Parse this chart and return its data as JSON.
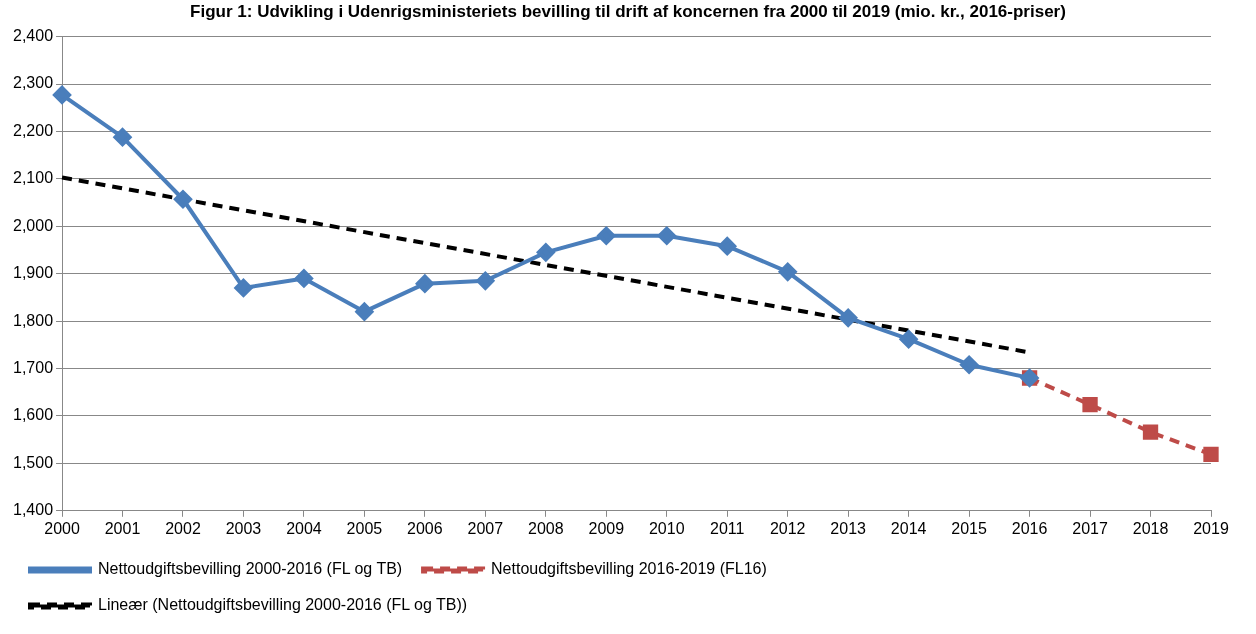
{
  "chart_data": {
    "type": "line",
    "title": "Figur 1: Udvikling i Udenrigsministeriets bevilling til drift af koncernen fra 2000 til 2019 (mio. kr., 2016-priser)",
    "xlim": [
      2000,
      2019
    ],
    "xticks": [
      2000,
      2001,
      2002,
      2003,
      2004,
      2005,
      2006,
      2007,
      2008,
      2009,
      2010,
      2011,
      2012,
      2013,
      2014,
      2015,
      2016,
      2017,
      2018,
      2019
    ],
    "ylim": [
      1400,
      2400
    ],
    "yticks": [
      {
        "value": 1400,
        "label": "1,400"
      },
      {
        "value": 1500,
        "label": "1,500"
      },
      {
        "value": 1600,
        "label": "1,600"
      },
      {
        "value": 1700,
        "label": "1,700"
      },
      {
        "value": 1800,
        "label": "1,800"
      },
      {
        "value": 1900,
        "label": "1,900"
      },
      {
        "value": 2000,
        "label": "2,000"
      },
      {
        "value": 2100,
        "label": "2,100"
      },
      {
        "value": 2200,
        "label": "2,200"
      },
      {
        "value": 2300,
        "label": "2,300"
      },
      {
        "value": 2400,
        "label": "2,400"
      }
    ],
    "grid": "y",
    "legend": "bottom",
    "series": [
      {
        "name": "Nettoudgiftsbevilling 2000-2016 (FL og TB)",
        "color": "#4a7ebb",
        "marker": "diamond",
        "line_style": "solid",
        "x": [
          2000,
          2001,
          2002,
          2003,
          2004,
          2005,
          2006,
          2007,
          2008,
          2009,
          2010,
          2011,
          2012,
          2013,
          2014,
          2015,
          2016
        ],
        "values": [
          2277,
          2188,
          2057,
          1870,
          1890,
          1820,
          1879,
          1885,
          1945,
          1980,
          1980,
          1958,
          1904,
          1807,
          1762,
          1708,
          1680
        ]
      },
      {
        "name": "Nettoudgiftsbevilling 2016-2019 (FL16)",
        "color": "#be4b48",
        "marker": "square",
        "line_style": "dashed",
        "x": [
          2016,
          2017,
          2018,
          2019
        ],
        "values": [
          1680,
          1624,
          1566,
          1519
        ]
      },
      {
        "name": "Lineær (Nettoudgiftsbevilling 2000-2016 (FL og TB))",
        "color": "#000000",
        "marker": "none",
        "line_style": "dashed",
        "x": [
          2000,
          2016
        ],
        "values": [
          2103,
          1734
        ]
      }
    ]
  }
}
